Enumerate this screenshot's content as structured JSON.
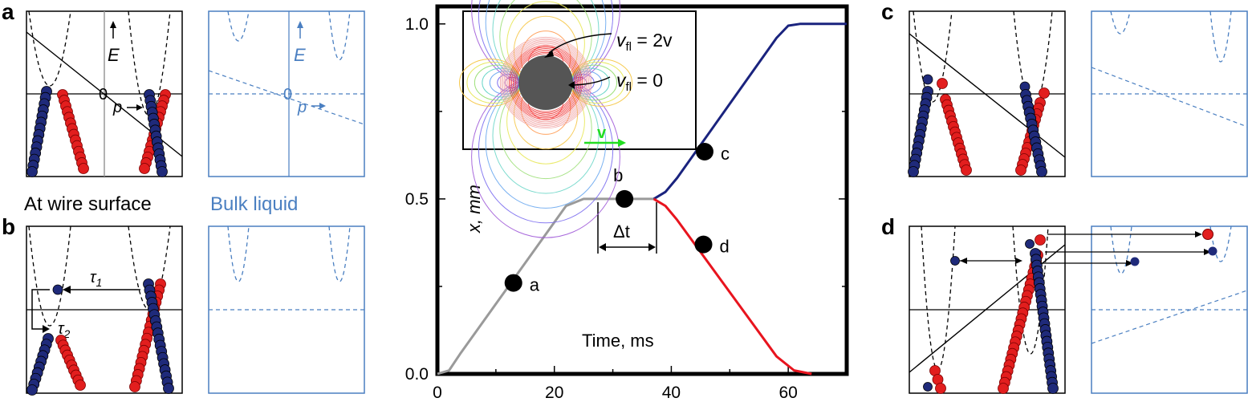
{
  "panels": {
    "a": {
      "letter": "a",
      "energy_label": "E",
      "momentum_label": "p",
      "zero_label": "0"
    },
    "b": {
      "letter": "b",
      "tau1": "τ",
      "tau1_sub": "1",
      "tau2": "τ",
      "tau2_sub": "2"
    },
    "c": {
      "letter": "c"
    },
    "d": {
      "letter": "d"
    }
  },
  "captions": {
    "wire": "At wire surface",
    "bulk": "Bulk liquid"
  },
  "colors": {
    "blue_balls": "#1f2a7a",
    "red_balls": "#e21e1e",
    "bulk_frame": "#4a7fc1",
    "path_gray": "#9a9a9a",
    "path_blue": "#1a237e",
    "path_red": "#e8141e",
    "velocity_arrow": "#22dd22"
  },
  "inset": {
    "vfl_top": "v",
    "vfl_top_sub": "fl",
    "vfl_top_eq": " = 2v",
    "vfl_bottom": "v",
    "vfl_bottom_sub": "fl",
    "vfl_bottom_eq": " = 0",
    "velocity_label": "v"
  },
  "chart_data": {
    "type": "line",
    "xlabel": "Time, ms",
    "ylabel": "x, mm",
    "xlim": [
      0,
      70
    ],
    "ylim": [
      0,
      1.05
    ],
    "x_ticks": [
      "0",
      "20",
      "40",
      "60"
    ],
    "y_ticks": [
      "0.0",
      "0.5",
      "1.0"
    ],
    "delta_label": "Δt",
    "series": [
      {
        "color": "gray",
        "points": [
          [
            0,
            0
          ],
          [
            2,
            0.01
          ],
          [
            4,
            0.06
          ],
          [
            22,
            0.48
          ],
          [
            25,
            0.5
          ],
          [
            37,
            0.5
          ]
        ]
      },
      {
        "color": "blue",
        "points": [
          [
            37,
            0.5
          ],
          [
            39,
            0.52
          ],
          [
            41,
            0.56
          ],
          [
            58,
            0.96
          ],
          [
            60,
            0.995
          ],
          [
            62,
            1.0
          ],
          [
            70,
            1.0
          ]
        ]
      },
      {
        "color": "red",
        "points": [
          [
            37,
            0.5
          ],
          [
            39,
            0.48
          ],
          [
            41,
            0.44
          ],
          [
            58,
            0.05
          ],
          [
            61,
            0.01
          ],
          [
            64,
            0
          ]
        ]
      }
    ],
    "markers": [
      {
        "label": "a",
        "x": 13,
        "y": 0.26
      },
      {
        "label": "b",
        "x": 32,
        "y": 0.5
      },
      {
        "label": "c",
        "x": 45.7,
        "y": 0.635
      },
      {
        "label": "d",
        "x": 45.5,
        "y": 0.37
      }
    ]
  }
}
